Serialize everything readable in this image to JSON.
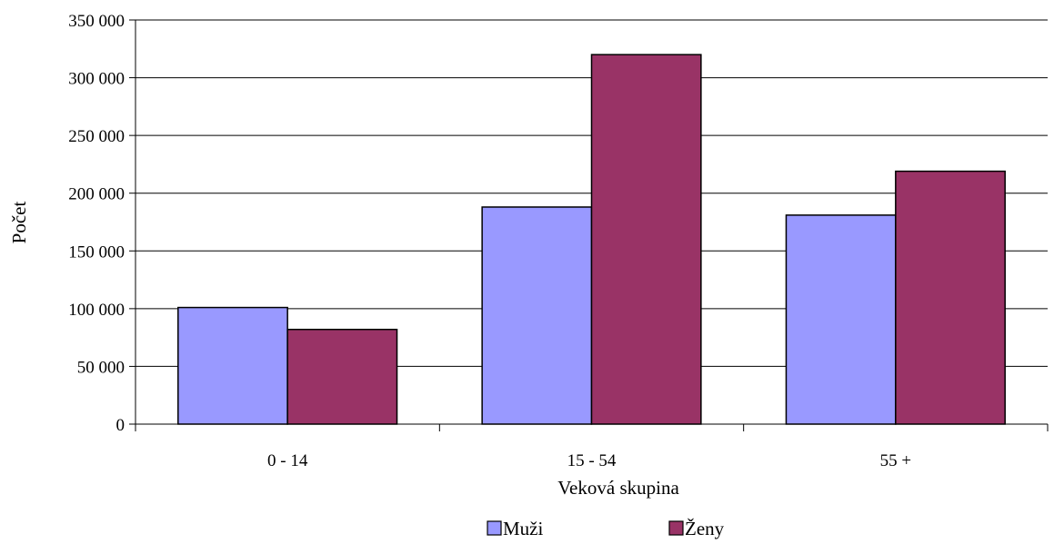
{
  "chart_data": {
    "type": "bar",
    "title": "",
    "xlabel": "Veková skupina",
    "ylabel": "Počet",
    "categories": [
      "0 - 14",
      "15 - 54",
      "55 +"
    ],
    "series": [
      {
        "name": "Muži",
        "values": [
          101000,
          188000,
          181000
        ],
        "color": "#9999FF"
      },
      {
        "name": "Ženy",
        "values": [
          82000,
          320000,
          219000
        ],
        "color": "#993366"
      }
    ],
    "ylim": [
      0,
      350000
    ],
    "yticks": [
      0,
      50000,
      100000,
      150000,
      200000,
      250000,
      300000,
      350000
    ],
    "ytick_labels": [
      "0",
      "50 000",
      "100 000",
      "150 000",
      "200 000",
      "250 000",
      "300 000",
      "350 000"
    ],
    "grid": true,
    "legend_position": "bottom"
  }
}
